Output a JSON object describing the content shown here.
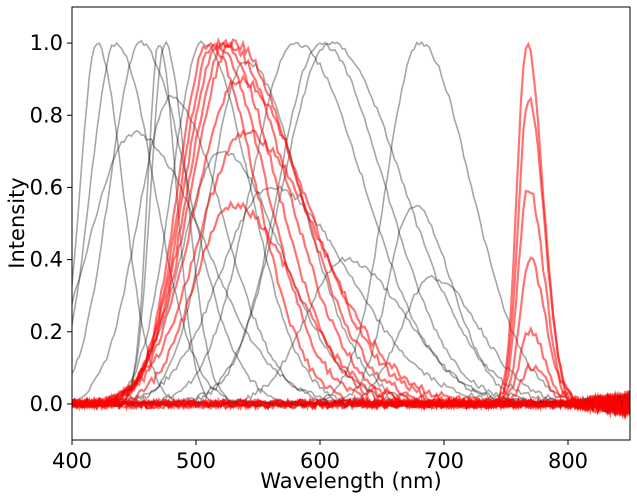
{
  "chart_data": {
    "type": "line",
    "title": "",
    "xlabel": "Wavelength (nm)",
    "ylabel": "Intensity",
    "xlim": [
      400,
      850
    ],
    "ylim": [
      -0.1,
      1.1
    ],
    "x_ticks": [
      "400",
      "500",
      "600",
      "700",
      "800"
    ],
    "y_ticks": [
      "0.0",
      "0.2",
      "0.4",
      "0.6",
      "0.8",
      "1.0"
    ],
    "grid": false,
    "legend": "none",
    "colors": {
      "black_series": "#000000",
      "red_series": "#ff0000"
    },
    "series": [
      {
        "group": "black",
        "peak_nm": 420,
        "width_nm": 30,
        "peak": 1.0
      },
      {
        "group": "black",
        "peak_nm": 435,
        "width_nm": 45,
        "peak": 1.0
      },
      {
        "group": "black",
        "peak_nm": 455,
        "width_nm": 55,
        "peak": 1.0
      },
      {
        "group": "black",
        "peak_nm": 470,
        "width_nm": 20,
        "peak": 1.0
      },
      {
        "group": "black",
        "peak_nm": 475,
        "width_nm": 25,
        "peak": 1.0
      },
      {
        "group": "black",
        "peak_nm": 480,
        "width_nm": 60,
        "peak": 0.85
      },
      {
        "group": "black",
        "peak_nm": 505,
        "width_nm": 55,
        "peak": 1.0
      },
      {
        "group": "black",
        "peak_nm": 520,
        "width_nm": 70,
        "peak": 0.7
      },
      {
        "group": "black",
        "peak_nm": 540,
        "width_nm": 65,
        "peak": 0.95
      },
      {
        "group": "black",
        "peak_nm": 580,
        "width_nm": 80,
        "peak": 1.0
      },
      {
        "group": "black",
        "peak_nm": 600,
        "width_nm": 75,
        "peak": 1.0
      },
      {
        "group": "black",
        "peak_nm": 608,
        "width_nm": 85,
        "peak": 1.0
      },
      {
        "group": "black",
        "peak_nm": 675,
        "width_nm": 45,
        "peak": 0.55
      },
      {
        "group": "black",
        "peak_nm": 680,
        "width_nm": 60,
        "peak": 1.0
      },
      {
        "group": "black",
        "peak_nm": 690,
        "width_nm": 55,
        "peak": 0.35
      },
      {
        "group": "black",
        "peak_nm": 560,
        "width_nm": 90,
        "peak": 0.6
      },
      {
        "group": "black",
        "peak_nm": 620,
        "width_nm": 70,
        "peak": 0.4
      },
      {
        "group": "black",
        "peak_nm": 450,
        "width_nm": 80,
        "peak": 0.75
      },
      {
        "group": "red",
        "peak_nm": 510,
        "width_nm": 55,
        "peak": 1.0
      },
      {
        "group": "red",
        "peak_nm": 515,
        "width_nm": 60,
        "peak": 1.0
      },
      {
        "group": "red",
        "peak_nm": 520,
        "width_nm": 65,
        "peak": 1.0
      },
      {
        "group": "red",
        "peak_nm": 525,
        "width_nm": 70,
        "peak": 1.0
      },
      {
        "group": "red",
        "peak_nm": 530,
        "width_nm": 75,
        "peak": 1.0
      },
      {
        "group": "red",
        "peak_nm": 535,
        "width_nm": 80,
        "peak": 0.9
      },
      {
        "group": "red",
        "peak_nm": 540,
        "width_nm": 85,
        "peak": 0.75
      },
      {
        "group": "red",
        "peak_nm": 530,
        "width_nm": 70,
        "peak": 0.55
      },
      {
        "group": "red",
        "peak_nm": 767,
        "width_nm": 18,
        "peak": 1.0
      },
      {
        "group": "red",
        "peak_nm": 768,
        "width_nm": 18,
        "peak": 0.85
      },
      {
        "group": "red",
        "peak_nm": 768,
        "width_nm": 18,
        "peak": 0.6
      },
      {
        "group": "red",
        "peak_nm": 769,
        "width_nm": 18,
        "peak": 0.4
      },
      {
        "group": "red",
        "peak_nm": 769,
        "width_nm": 18,
        "peak": 0.2
      },
      {
        "group": "red",
        "peak_nm": 770,
        "width_nm": 18,
        "peak": 0.1
      }
    ]
  }
}
